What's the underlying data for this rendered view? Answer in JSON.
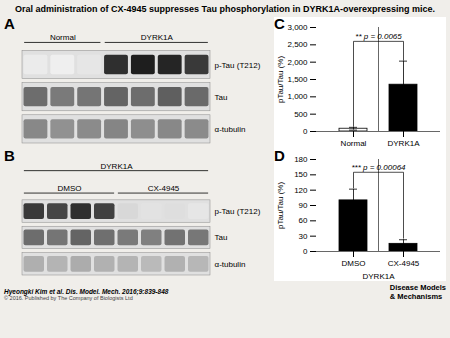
{
  "title": "Oral administration of CX-4945 suppresses Tau phosphorylation in DYRK1A-overexpressing mice.",
  "background": "#f0eeea",
  "footer": "Hyeongki Kim et al. Dis. Model. Mech. 2016;9:839-848",
  "copyright": "© 2016. Published by The Company of Biologists Ltd",
  "logo": [
    "Disease Models",
    "& Mechanisms"
  ],
  "chart_data": [
    {
      "type": "blot",
      "title": "A",
      "headers": [
        [
          {
            "label": "Normal",
            "n": 3
          },
          {
            "label": "DYRK1A",
            "n": 4
          }
        ]
      ],
      "rows": [
        "p-Tau (T212)",
        "Tau",
        "α-tubulin"
      ],
      "values": [
        [
          0.15,
          0.12,
          0.18,
          0.85,
          0.9,
          0.88,
          0.82
        ],
        [
          0.65,
          0.6,
          0.62,
          0.68,
          0.65,
          0.7,
          0.66
        ],
        [
          0.55,
          0.52,
          0.54,
          0.56,
          0.53,
          0.55,
          0.54
        ]
      ],
      "clim": [
        0,
        1
      ]
    },
    {
      "type": "blot",
      "title": "B",
      "headers": [
        [
          {
            "label": "DMSO",
            "n": 4
          },
          {
            "label": "CX-4945",
            "n": 4
          }
        ],
        [
          {
            "label": "DYRK1A",
            "n": 8
          }
        ]
      ],
      "rows": [
        "p-Tau (T212)",
        "Tau",
        "α-tubulin"
      ],
      "values": [
        [
          0.82,
          0.78,
          0.85,
          0.8,
          0.25,
          0.2,
          0.22,
          0.18
        ],
        [
          0.65,
          0.62,
          0.68,
          0.64,
          0.6,
          0.58,
          0.63,
          0.61
        ],
        [
          0.42,
          0.4,
          0.43,
          0.41,
          0.4,
          0.38,
          0.41,
          0.39
        ]
      ],
      "clim": [
        0,
        1
      ]
    },
    {
      "type": "bar",
      "title": "C",
      "categories": [
        "Normal",
        "DYRK1A"
      ],
      "values": [
        80,
        1350
      ],
      "errors": [
        40,
        680
      ],
      "colors": [
        "white",
        "black"
      ],
      "edge_color": "black",
      "ylabel": "pTau/Tau (%)",
      "ylim": [
        0,
        3000
      ],
      "yticks": [
        0,
        500,
        1000,
        1500,
        2000,
        2500,
        3000
      ],
      "grid": false,
      "bracket": {
        "label": "** p = 0.0065",
        "y": 2600,
        "ends": [
          150,
          2060
        ]
      }
    },
    {
      "type": "bar",
      "title": "D",
      "categories": [
        "DMSO",
        "CX-4945"
      ],
      "values": [
        100,
        15
      ],
      "errors": [
        22,
        8
      ],
      "colors": [
        "black",
        "black"
      ],
      "edge_color": "black",
      "xlabel": "DYRK1A",
      "ylabel": "pTau/Tau (%)",
      "ylim": [
        0,
        180
      ],
      "yticks": [
        0,
        30,
        60,
        90,
        120,
        150,
        180
      ],
      "grid": false,
      "bracket": {
        "label": "*** p = 0.00064",
        "y": 155,
        "ends": [
          125,
          26
        ]
      }
    }
  ]
}
